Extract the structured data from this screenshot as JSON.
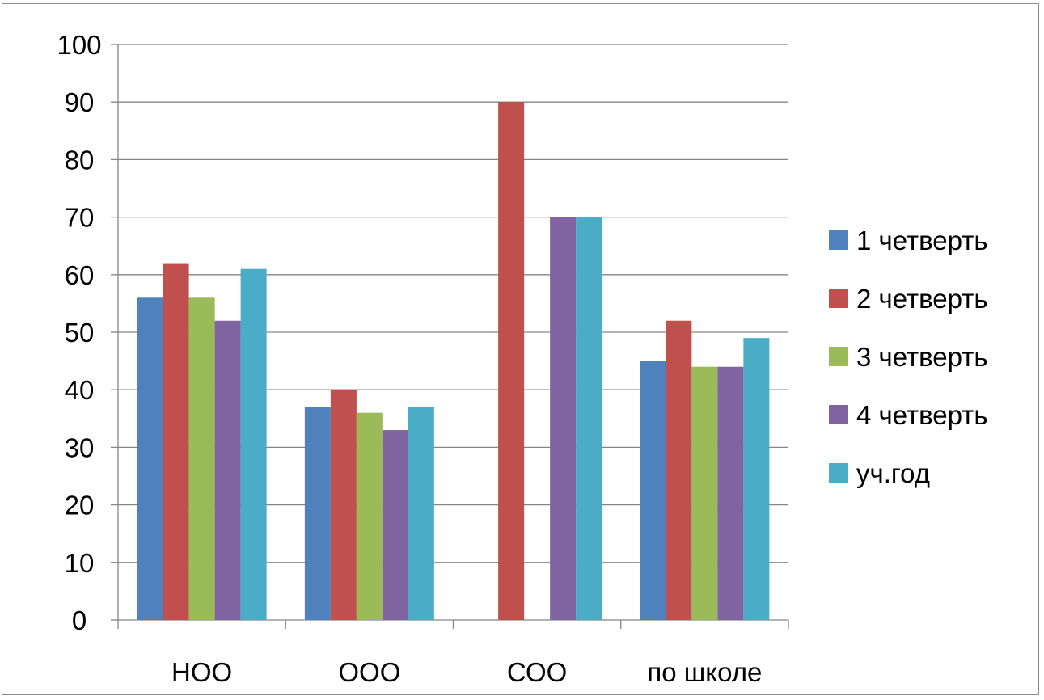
{
  "chart_data": {
    "type": "bar",
    "title": "",
    "xlabel": "",
    "ylabel": "",
    "categories": [
      "НОО",
      "ООО",
      "СОО",
      "по школе"
    ],
    "series": [
      {
        "name": "1 четверть",
        "color": "#4F81BD",
        "values": [
          56,
          37,
          null,
          45
        ]
      },
      {
        "name": "2 четверть",
        "color": "#C0504D",
        "values": [
          62,
          40,
          90,
          52
        ]
      },
      {
        "name": "3 четверть",
        "color": "#9BBB59",
        "values": [
          56,
          36,
          null,
          44
        ]
      },
      {
        "name": "4 четверть",
        "color": "#8064A2",
        "values": [
          52,
          33,
          70,
          44
        ]
      },
      {
        "name": "уч.год",
        "color": "#4BACC6",
        "values": [
          61,
          37,
          70,
          49
        ]
      }
    ],
    "ylim": [
      0,
      100
    ],
    "yticks": [
      0,
      10,
      20,
      30,
      40,
      50,
      60,
      70,
      80,
      90,
      100
    ],
    "grid": true,
    "legend_position": "right"
  }
}
